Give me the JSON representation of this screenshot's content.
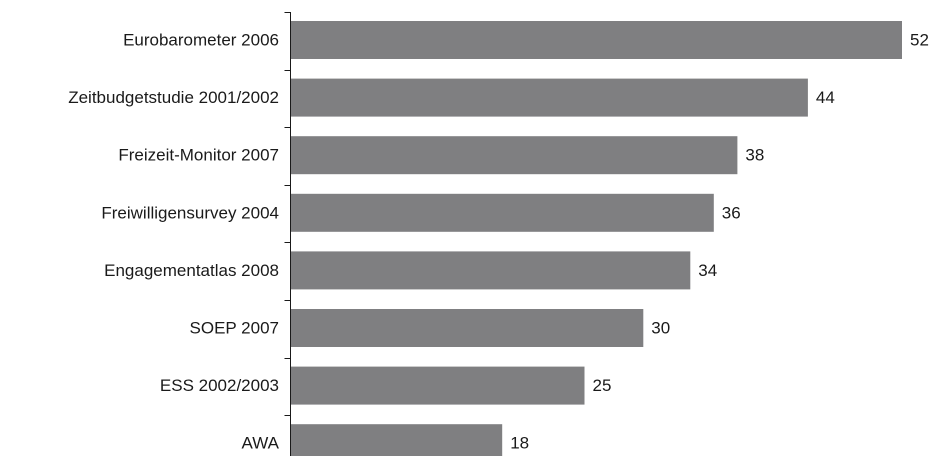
{
  "chart_data": {
    "type": "bar",
    "orientation": "horizontal",
    "categories": [
      "Eurobarometer 2006",
      "Zeitbudgetstudie 2001/2002",
      "Freizeit-Monitor 2007",
      "Freiwilligensurvey 2004",
      "Engagementatlas 2008",
      "SOEP 2007",
      "ESS 2002/2003",
      "AWA"
    ],
    "values": [
      52,
      44,
      38,
      36,
      34,
      30,
      25,
      18
    ],
    "value_labels": [
      "52",
      "44",
      "38",
      "36",
      "34",
      "30",
      "25",
      "18"
    ],
    "xlim": [
      0,
      52
    ],
    "grid": false,
    "legend": "none",
    "colors": {
      "bar": "#7f7f81",
      "text": "#1a1a1a",
      "axis": "#1a1a1a"
    }
  }
}
